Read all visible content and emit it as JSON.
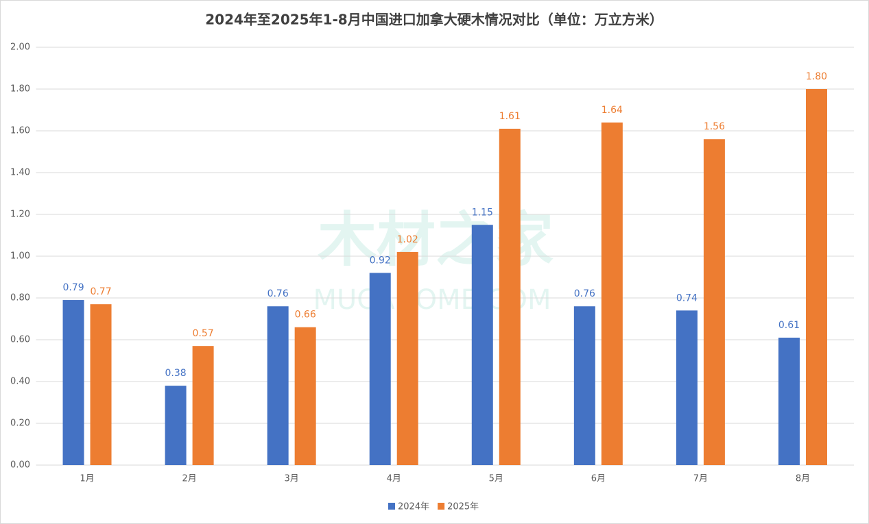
{
  "chart_data": {
    "type": "bar",
    "title": "2024年至2025年1-8月中国进口加拿大硬木情况对比（单位：万立方米）",
    "watermark": [
      "木材之家",
      "MUCAHOME.COM"
    ],
    "categories": [
      "1月",
      "2月",
      "3月",
      "4月",
      "5月",
      "6月",
      "7月",
      "8月"
    ],
    "series": [
      {
        "name": "2024年",
        "color": "#4472c4",
        "values": [
          0.79,
          0.38,
          0.76,
          0.92,
          1.15,
          0.76,
          0.74,
          0.61
        ],
        "value_labels": [
          "0.79",
          "0.38",
          "0.76",
          "0.92",
          "1.15",
          "0.76",
          "0.74",
          "0.61"
        ]
      },
      {
        "name": "2025年",
        "color": "#ed7d31",
        "values": [
          0.77,
          0.57,
          0.66,
          1.02,
          1.61,
          1.64,
          1.56,
          1.8
        ],
        "value_labels": [
          "0.77",
          "0.57",
          "0.66",
          "1.02",
          "1.61",
          "1.64",
          "1.56",
          "1.80"
        ]
      }
    ],
    "ylim": [
      0,
      2
    ],
    "yticks": [
      {
        "value": 0,
        "label": "0.00"
      },
      {
        "value": 0.2,
        "label": "0.20"
      },
      {
        "value": 0.4,
        "label": "0.40"
      },
      {
        "value": 0.6,
        "label": "0.60"
      },
      {
        "value": 0.8,
        "label": "0.80"
      },
      {
        "value": 1,
        "label": "1.00"
      },
      {
        "value": 1.2,
        "label": "1.20"
      },
      {
        "value": 1.4,
        "label": "1.40"
      },
      {
        "value": 1.6,
        "label": "1.60"
      },
      {
        "value": 1.8,
        "label": "1.80"
      },
      {
        "value": 2,
        "label": "2.00"
      }
    ],
    "grid": true,
    "legend": "bottom"
  }
}
